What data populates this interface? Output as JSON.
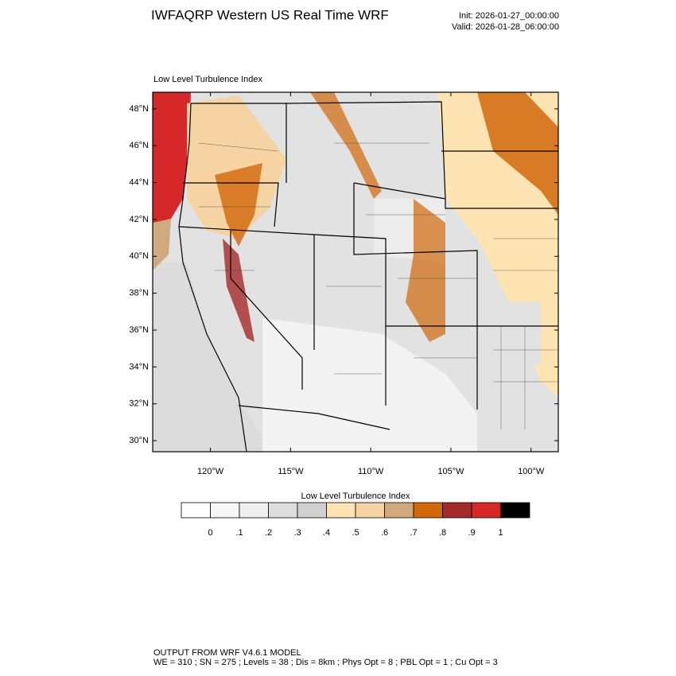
{
  "header": {
    "title": "IWFAQRP Western US Real Time WRF",
    "init": "Init: 2026-01-27_00:00:00",
    "valid": "Valid: 2026-01-28_06:00:00"
  },
  "map": {
    "subtitle": "Low Level Turbulence Index",
    "xlim": [
      -123.6,
      -98.3
    ],
    "ylim": [
      29.4,
      48.9
    ],
    "lat_ticks": [
      {
        "value": 48,
        "label": "48°N"
      },
      {
        "value": 46,
        "label": "46°N"
      },
      {
        "value": 44,
        "label": "44°N"
      },
      {
        "value": 42,
        "label": "42°N"
      },
      {
        "value": 40,
        "label": "40°N"
      },
      {
        "value": 38,
        "label": "38°N"
      },
      {
        "value": 36,
        "label": "36°N"
      },
      {
        "value": 34,
        "label": "34°N"
      },
      {
        "value": 32,
        "label": "32°N"
      },
      {
        "value": 30,
        "label": "30°N"
      }
    ],
    "lon_ticks": [
      {
        "value": -120,
        "label": "120°W"
      },
      {
        "value": -115,
        "label": "115°W"
      },
      {
        "value": -110,
        "label": "110°W"
      },
      {
        "value": -105,
        "label": "105°W"
      },
      {
        "value": -100,
        "label": "100°W"
      }
    ]
  },
  "colorbar": {
    "title": "Low Level Turbulence Index",
    "colors": [
      "#ffffff",
      "#f7f7f7",
      "#efefef",
      "#dedede",
      "#d0d0d0",
      "#ffe4b3",
      "#f5d3a3",
      "#d0a97f",
      "#d2680a",
      "#a52a2a",
      "#d62828",
      "#000000"
    ],
    "ticks": [
      0,
      {
        "value": 0.1,
        "label": ".1"
      },
      {
        "value": 0.2,
        "label": ".2"
      },
      {
        "value": 0.3,
        "label": ".3"
      },
      {
        "value": 0.4,
        "label": ".4"
      },
      {
        "value": 0.5,
        "label": ".5"
      },
      {
        "value": 0.6,
        "label": ".6"
      },
      {
        "value": 0.7,
        "label": ".7"
      },
      {
        "value": 0.8,
        "label": ".8"
      },
      {
        "value": 0.9,
        "label": ".9"
      },
      1
    ]
  },
  "footer": {
    "line1": "OUTPUT FROM WRF V4.6.1 MODEL",
    "line2": "WE = 310 ; SN = 275 ; Levels = 38 ; Dis = 8km ; Phys Opt = 8 ; PBL Opt = 1 ; Cu Opt = 3"
  }
}
